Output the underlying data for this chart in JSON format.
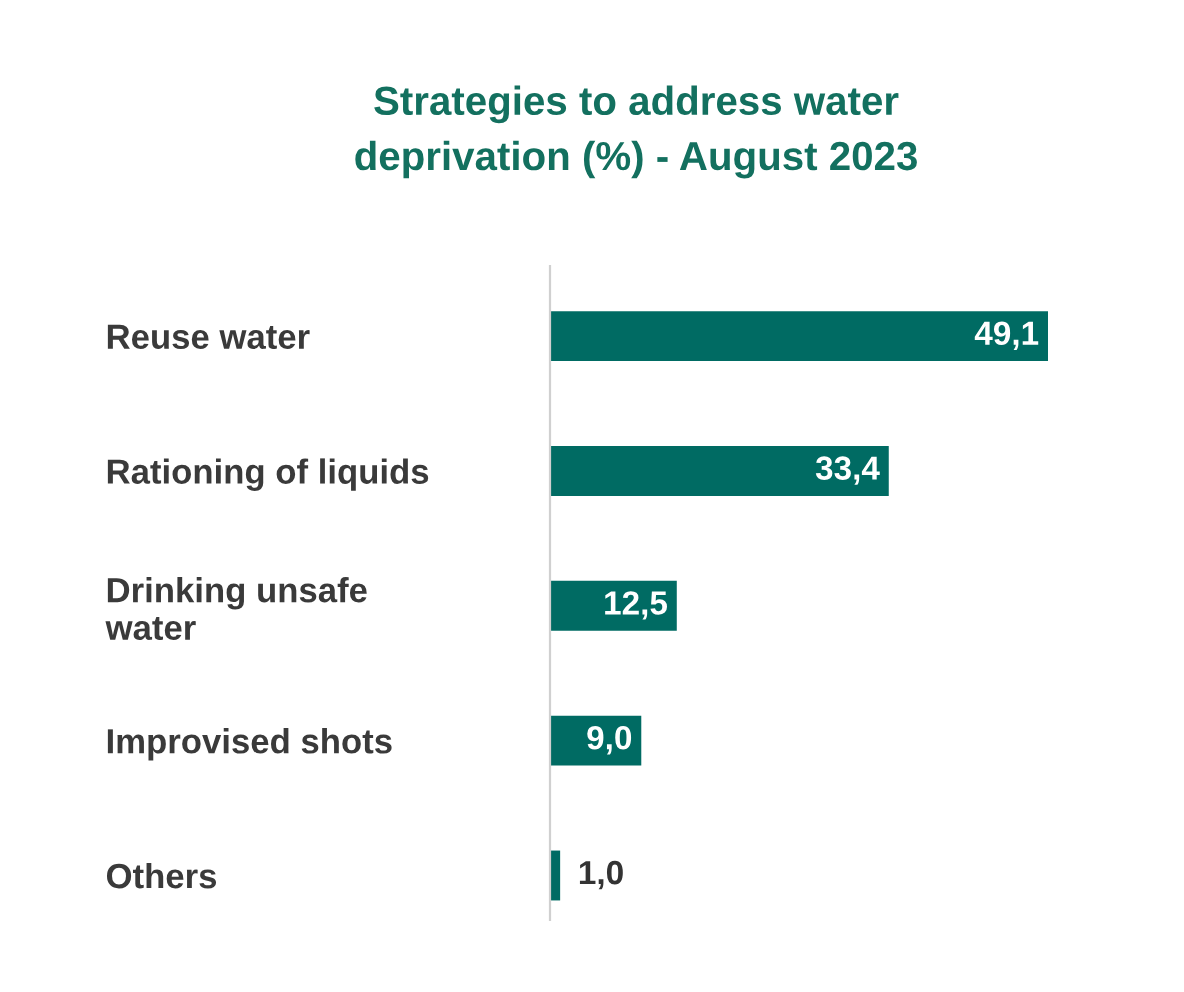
{
  "chart_data": {
    "type": "bar",
    "orientation": "horizontal",
    "title": "Strategies to address water\ndeprivation (%) - August 2023",
    "categories": [
      "Reuse water",
      "Rationing of liquids",
      "Drinking unsafe\nwater",
      "Improvised shots",
      "Others"
    ],
    "values": [
      49.1,
      33.4,
      12.5,
      9.0,
      1.0
    ],
    "value_labels": [
      "49,1",
      "33,4",
      "12,5",
      "9,0",
      "1,0"
    ],
    "color": "#006b63",
    "grid": false,
    "legend": false,
    "tick_labels": "y"
  }
}
